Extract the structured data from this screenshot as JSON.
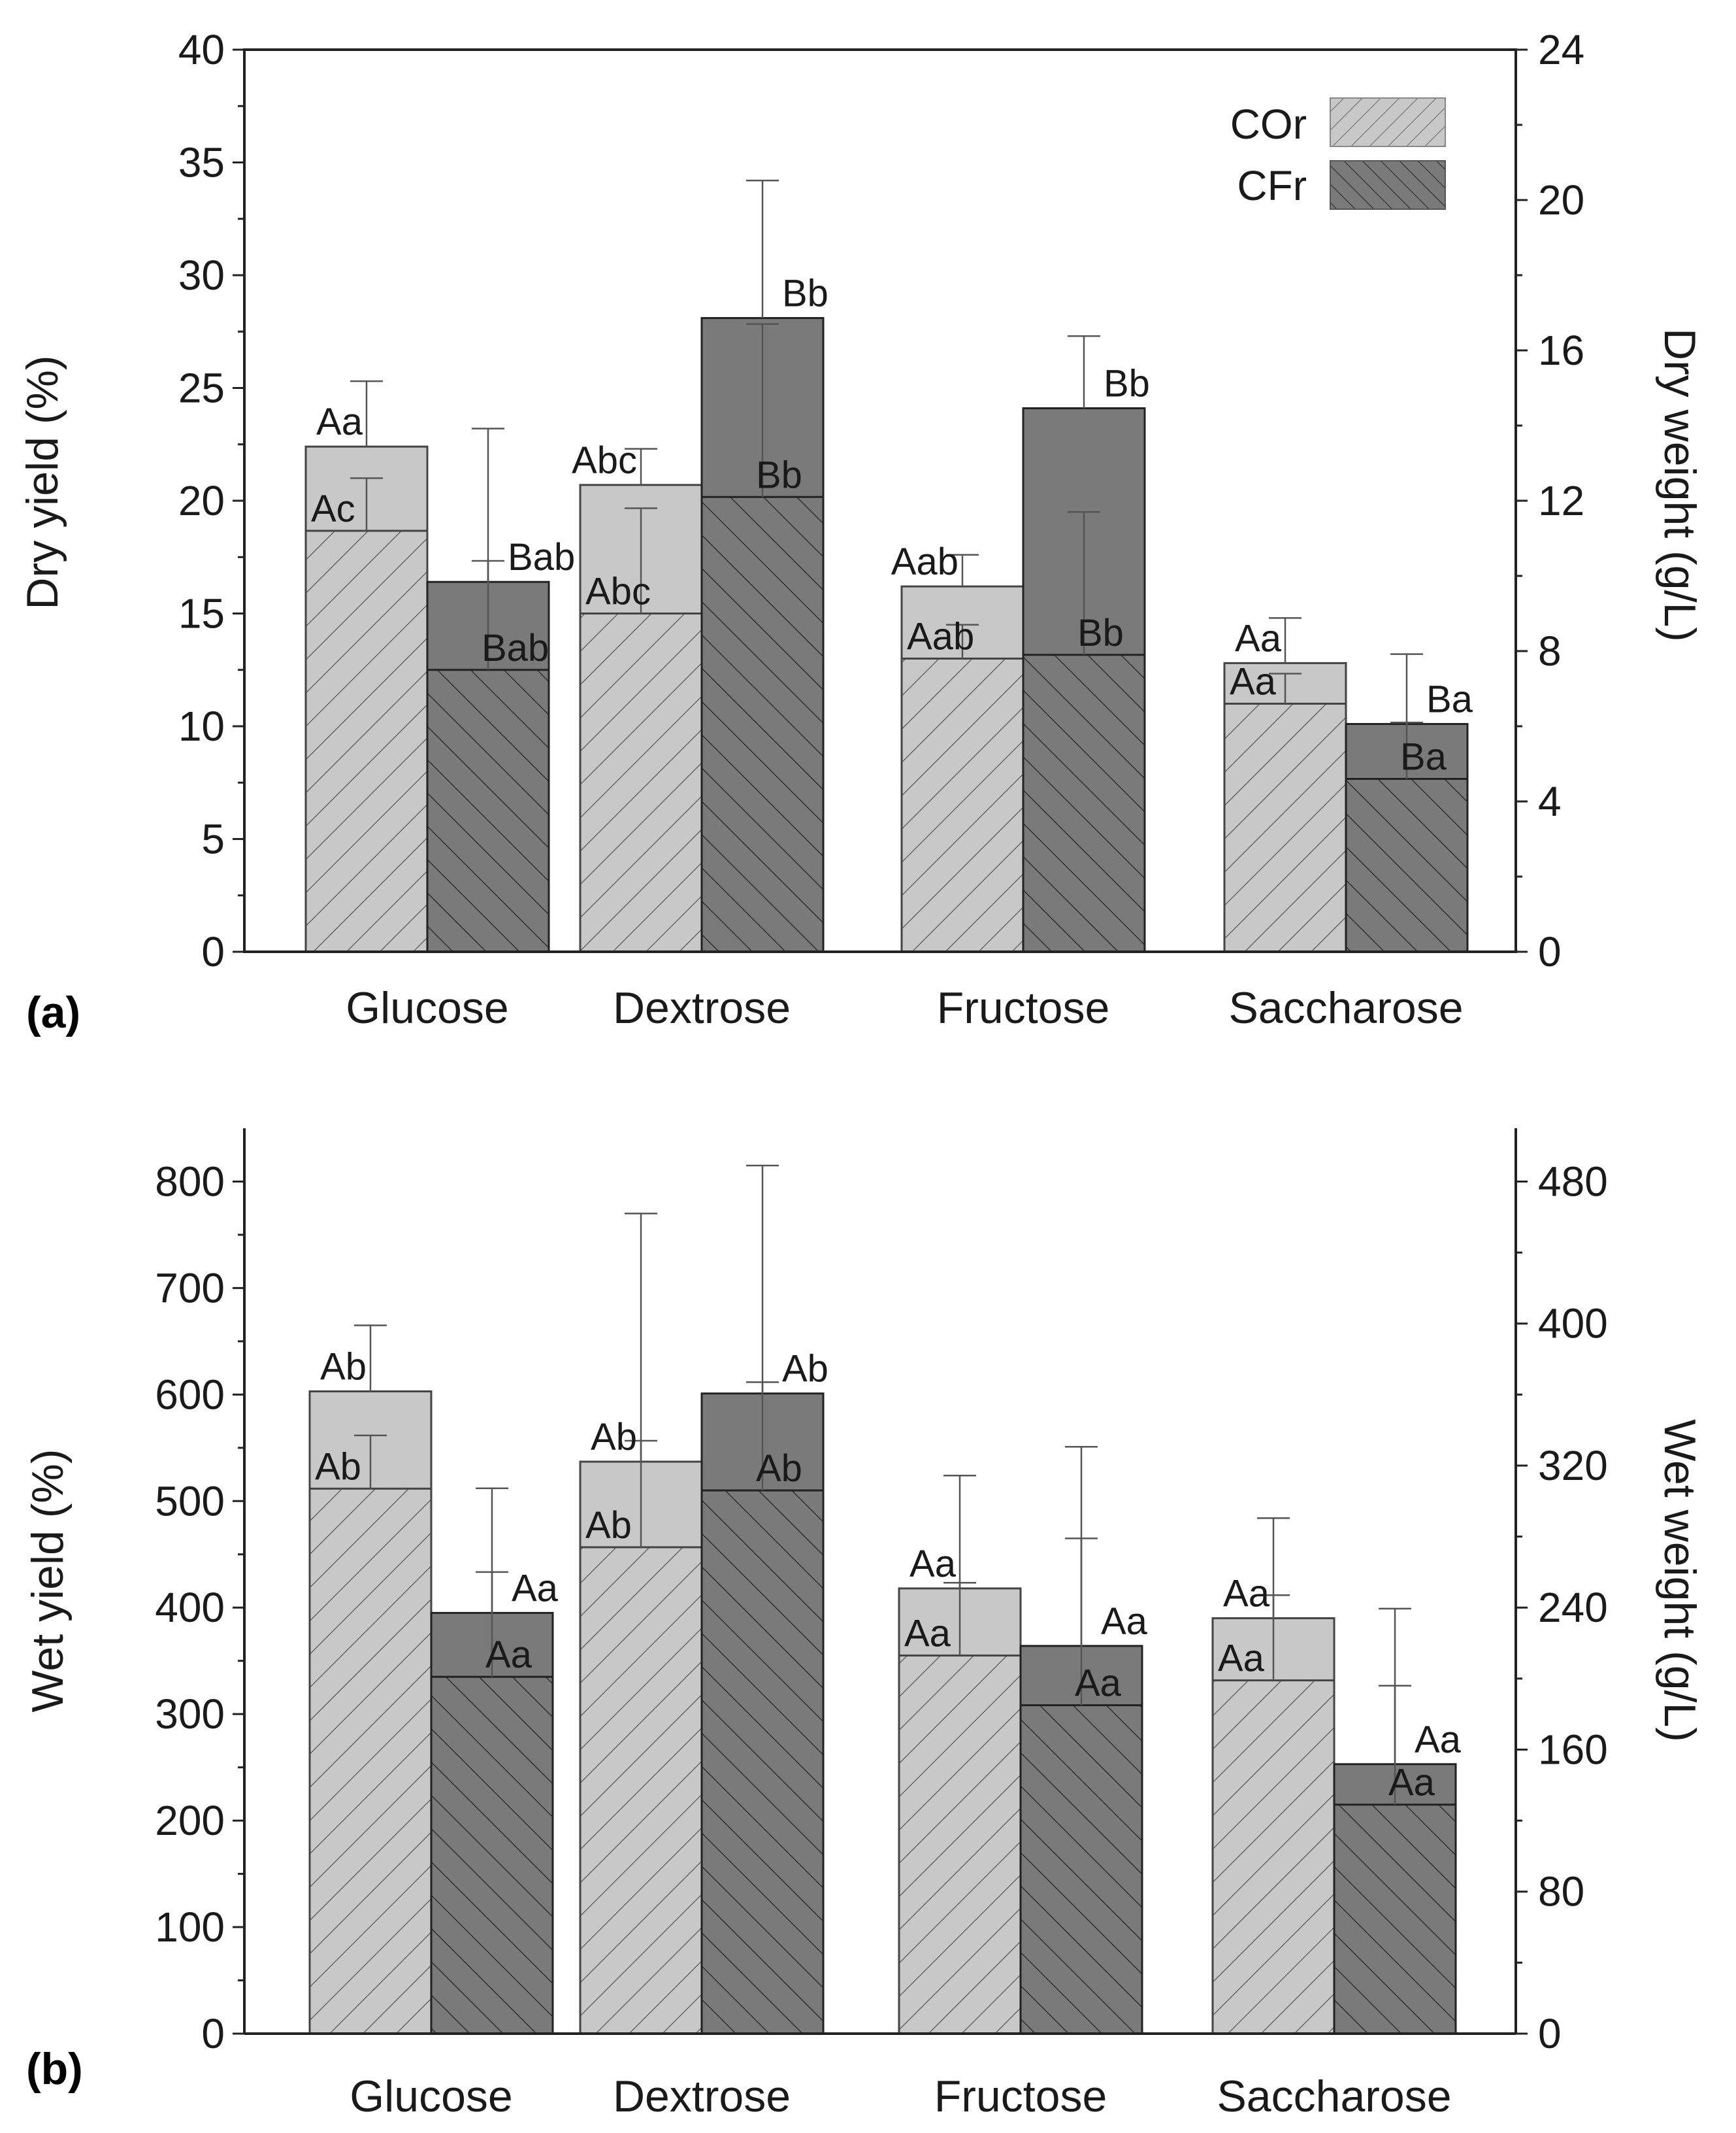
{
  "chart_data": [
    {
      "type": "bar",
      "panel_label": "(a)",
      "categories": [
        "Glucose",
        "Dextrose",
        "Fructose",
        "Saccharose"
      ],
      "ylabel": "Dry yield (%)",
      "ylabel_right": "Dry weight (g/L)",
      "ylim": [
        0,
        40
      ],
      "ylim_right": [
        0,
        24
      ],
      "yticks": [
        "0",
        "5",
        "10",
        "15",
        "20",
        "25",
        "30",
        "35",
        "40"
      ],
      "yticks_right": [
        "0",
        "4",
        "8",
        "12",
        "16",
        "20",
        "24"
      ],
      "legend": {
        "position": "top-right",
        "entries": [
          "COr",
          "CFr"
        ]
      },
      "series": [
        {
          "name": "COr",
          "color": "#c8c8c8",
          "yield": [
            22.4,
            20.7,
            16.2,
            12.8
          ],
          "yield_err": [
            2.9,
            1.6,
            1.4,
            2.0
          ],
          "yield_labels": [
            "Aa",
            "Abc",
            "Aab",
            "Aa"
          ],
          "weight": [
            11.2,
            9.0,
            7.8,
            6.6
          ],
          "weight_err": [
            1.4,
            2.8,
            0.9,
            0.8
          ],
          "weight_labels": [
            "Ac",
            "Abc",
            "Aab",
            "Aa"
          ]
        },
        {
          "name": "CFr",
          "color": "#7a7a7a",
          "yield": [
            16.4,
            28.1,
            24.1,
            10.1
          ],
          "yield_err": [
            6.8,
            6.1,
            3.2,
            3.1
          ],
          "yield_labels": [
            "Bab",
            "Bb",
            "Bb",
            "Ba"
          ],
          "weight": [
            7.5,
            12.1,
            7.9,
            4.6
          ],
          "weight_err": [
            2.9,
            4.6,
            3.8,
            1.5
          ],
          "weight_labels": [
            "Bab",
            "Bb",
            "Bb",
            "Ba"
          ]
        }
      ]
    },
    {
      "type": "bar",
      "panel_label": "(b)",
      "categories": [
        "Glucose",
        "Dextrose",
        "Fructose",
        "Saccharose"
      ],
      "ylabel": "Wet yield (%)",
      "ylabel_right": "Wet weight (g/L)",
      "ylim": [
        0,
        850
      ],
      "ylim_right": [
        0,
        510
      ],
      "yticks": [
        "0",
        "100",
        "200",
        "300",
        "400",
        "500",
        "600",
        "700",
        "800"
      ],
      "yticks_right": [
        "0",
        "80",
        "160",
        "240",
        "320",
        "400",
        "480"
      ],
      "legend": null,
      "series": [
        {
          "name": "COr",
          "color": "#c8c8c8",
          "yield": [
            603,
            537,
            418,
            390
          ],
          "yield_err": [
            62,
            233,
            106,
            94
          ],
          "yield_labels": [
            "Ab",
            "Ab",
            "Aa",
            "Aa"
          ],
          "weight": [
            307,
            274,
            213,
            199
          ],
          "weight_err": [
            30,
            60,
            41,
            48
          ],
          "weight_labels": [
            "Ab",
            "Ab",
            "Aa",
            "Aa"
          ]
        },
        {
          "name": "CFr",
          "color": "#7a7a7a",
          "yield": [
            395,
            601,
            364,
            253
          ],
          "yield_err": [
            117,
            214,
            187,
            146
          ],
          "yield_labels": [
            "Aa",
            "Ab",
            "Aa",
            "Aa"
          ],
          "weight": [
            201,
            306,
            185,
            129
          ],
          "weight_err": [
            59,
            61,
            94,
            67
          ],
          "weight_labels": [
            "Aa",
            "Ab",
            "Aa",
            "Aa"
          ]
        }
      ]
    }
  ]
}
